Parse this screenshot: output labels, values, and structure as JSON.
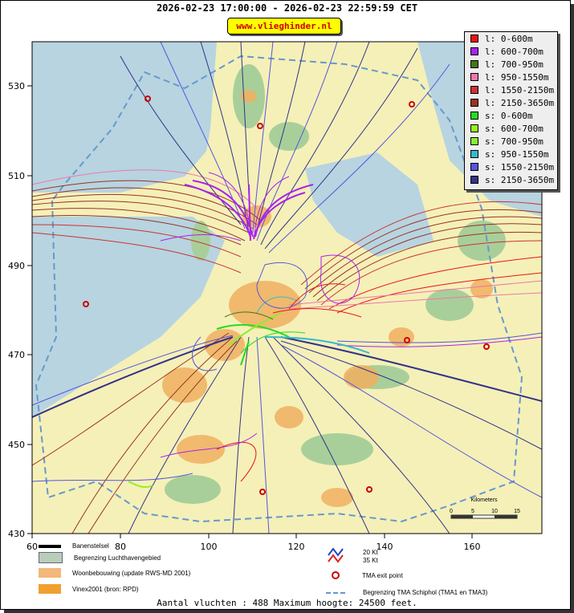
{
  "title": "2026-02-23 17:00:00 - 2026-02-23 22:59:59 CET",
  "brand": "www.vlieghinder.nl",
  "axes": {
    "x_ticks": [
      "60",
      "80",
      "100",
      "120",
      "140",
      "160"
    ],
    "y_ticks": [
      "530",
      "510",
      "490",
      "470",
      "450",
      "430"
    ]
  },
  "legend": [
    {
      "label": "l: 0-600m",
      "color": "#ee1111"
    },
    {
      "label": "l: 600-700m",
      "color": "#aa22ee"
    },
    {
      "label": "l: 700-950m",
      "color": "#447711"
    },
    {
      "label": "l: 950-1550m",
      "color": "#ee77aa"
    },
    {
      "label": "l: 1550-2150m",
      "color": "#cc3333"
    },
    {
      "label": "l: 2150-3650m",
      "color": "#993322"
    },
    {
      "label": "s: 0-600m",
      "color": "#22dd22"
    },
    {
      "label": "s: 600-700m",
      "color": "#99ee22"
    },
    {
      "label": "s: 700-950m",
      "color": "#88ee33"
    },
    {
      "label": "s: 950-1550m",
      "color": "#33bbcc"
    },
    {
      "label": "s: 1550-2150m",
      "color": "#5555dd"
    },
    {
      "label": "s: 2150-3650m",
      "color": "#333388"
    }
  ],
  "scale": {
    "label": "Kilometers",
    "ticks": [
      "0",
      "5",
      "10",
      "15"
    ]
  },
  "bottom_legend": {
    "runways": "Banenstelsel",
    "airport_boundary": "Begrenzing Luchthavengebied",
    "housing": "Woonbebouwing (update RWS-MD 2001)",
    "vinex": "Vinex2001 (bron: RPD)",
    "wind_20": "20 Kt",
    "wind_35": "35 Kt",
    "tma_exit": "TMA exit point",
    "tma_boundary": "Begrenzing TMA Schiphol  (TMA1 en TMA3)"
  },
  "footer": "Aantal vluchten : 488 Maximum hoogte: 24500 feet."
}
